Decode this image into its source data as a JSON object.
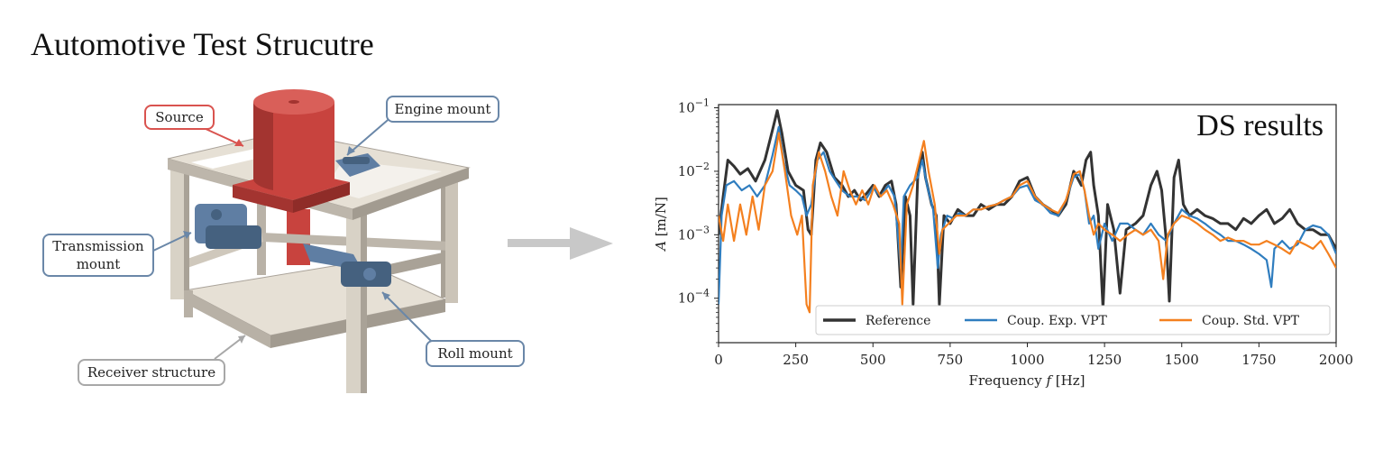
{
  "title": "Automotive Test Strucutre",
  "rig": {
    "labels": {
      "source": "Source",
      "engine_mount": "Engine mount",
      "transmission_mount_line1": "Transmission",
      "transmission_mount_line2": "mount",
      "roll_mount": "Roll mount",
      "receiver_structure": "Receiver structure"
    },
    "colors": {
      "source": "#c8433e",
      "mount": "#5f7ea3",
      "frame": "#e3ddd2",
      "frame_shade": "#9c968c",
      "arrow": "#c8c8c8"
    }
  },
  "chart_data": {
    "type": "line",
    "title": "DS results",
    "xlabel": "Frequency f [Hz]",
    "xlabel_parts": {
      "prefix": "Frequency ",
      "var": "f",
      "suffix": " [Hz]"
    },
    "ylabel": "A [m/N]",
    "ylabel_parts": {
      "var": "A",
      "suffix": " [m/N]"
    },
    "xlim": [
      0,
      2000
    ],
    "ylim_log10": [
      -4.7,
      -0.95
    ],
    "yscale": "log",
    "xticks": [
      0,
      250,
      500,
      750,
      1000,
      1250,
      1500,
      1750,
      2000
    ],
    "yticks": [
      {
        "base": "10",
        "exp": "−1",
        "value": 0.1
      },
      {
        "base": "10",
        "exp": "−2",
        "value": 0.01
      },
      {
        "base": "10",
        "exp": "−3",
        "value": 0.001
      },
      {
        "base": "10",
        "exp": "−4",
        "value": 0.0001
      }
    ],
    "legend_position": "bottom-right",
    "series": [
      {
        "name": "Reference",
        "color": "#333333",
        "points": [
          [
            0,
            0.001
          ],
          [
            15,
            0.004
          ],
          [
            30,
            0.015
          ],
          [
            50,
            0.012
          ],
          [
            70,
            0.009
          ],
          [
            95,
            0.011
          ],
          [
            120,
            0.007
          ],
          [
            150,
            0.015
          ],
          [
            175,
            0.045
          ],
          [
            190,
            0.09
          ],
          [
            205,
            0.04
          ],
          [
            225,
            0.01
          ],
          [
            250,
            0.006
          ],
          [
            275,
            0.005
          ],
          [
            290,
            0.0012
          ],
          [
            300,
            0.001
          ],
          [
            315,
            0.015
          ],
          [
            330,
            0.028
          ],
          [
            350,
            0.02
          ],
          [
            375,
            0.008
          ],
          [
            400,
            0.006
          ],
          [
            420,
            0.004
          ],
          [
            440,
            0.005
          ],
          [
            460,
            0.0035
          ],
          [
            480,
            0.0045
          ],
          [
            500,
            0.006
          ],
          [
            520,
            0.004
          ],
          [
            540,
            0.006
          ],
          [
            560,
            0.007
          ],
          [
            575,
            0.003
          ],
          [
            590,
            0.00015
          ],
          [
            605,
            0.004
          ],
          [
            620,
            0.002
          ],
          [
            630,
            8e-05
          ],
          [
            645,
            0.008
          ],
          [
            660,
            0.02
          ],
          [
            670,
            0.008
          ],
          [
            690,
            0.003
          ],
          [
            705,
            0.002
          ],
          [
            715,
            8e-05
          ],
          [
            730,
            0.002
          ],
          [
            750,
            0.0015
          ],
          [
            775,
            0.0025
          ],
          [
            800,
            0.002
          ],
          [
            825,
            0.002
          ],
          [
            850,
            0.003
          ],
          [
            875,
            0.0025
          ],
          [
            900,
            0.003
          ],
          [
            925,
            0.003
          ],
          [
            950,
            0.004
          ],
          [
            975,
            0.007
          ],
          [
            1000,
            0.008
          ],
          [
            1025,
            0.004
          ],
          [
            1050,
            0.003
          ],
          [
            1075,
            0.0025
          ],
          [
            1100,
            0.002
          ],
          [
            1125,
            0.003
          ],
          [
            1150,
            0.01
          ],
          [
            1175,
            0.006
          ],
          [
            1190,
            0.015
          ],
          [
            1205,
            0.02
          ],
          [
            1215,
            0.006
          ],
          [
            1230,
            0.002
          ],
          [
            1245,
            7e-05
          ],
          [
            1260,
            0.003
          ],
          [
            1280,
            0.0012
          ],
          [
            1300,
            0.00012
          ],
          [
            1320,
            0.0012
          ],
          [
            1350,
            0.0015
          ],
          [
            1375,
            0.002
          ],
          [
            1400,
            0.006
          ],
          [
            1420,
            0.01
          ],
          [
            1435,
            0.005
          ],
          [
            1450,
            0.0008
          ],
          [
            1460,
            9e-05
          ],
          [
            1475,
            0.008
          ],
          [
            1490,
            0.015
          ],
          [
            1505,
            0.003
          ],
          [
            1525,
            0.002
          ],
          [
            1550,
            0.0025
          ],
          [
            1575,
            0.002
          ],
          [
            1600,
            0.0018
          ],
          [
            1625,
            0.0015
          ],
          [
            1650,
            0.0015
          ],
          [
            1675,
            0.0012
          ],
          [
            1700,
            0.0018
          ],
          [
            1725,
            0.0015
          ],
          [
            1750,
            0.002
          ],
          [
            1775,
            0.0025
          ],
          [
            1800,
            0.0015
          ],
          [
            1825,
            0.0018
          ],
          [
            1850,
            0.0025
          ],
          [
            1875,
            0.0015
          ],
          [
            1900,
            0.0012
          ],
          [
            1925,
            0.0012
          ],
          [
            1950,
            0.001
          ],
          [
            1975,
            0.001
          ],
          [
            2000,
            0.0006
          ]
        ]
      },
      {
        "name": "Coup. Exp. VPT",
        "color": "#2f7dbf",
        "points": [
          [
            0,
            8e-05
          ],
          [
            10,
            0.002
          ],
          [
            25,
            0.006
          ],
          [
            50,
            0.007
          ],
          [
            75,
            0.005
          ],
          [
            100,
            0.006
          ],
          [
            125,
            0.004
          ],
          [
            150,
            0.006
          ],
          [
            175,
            0.018
          ],
          [
            195,
            0.05
          ],
          [
            210,
            0.015
          ],
          [
            230,
            0.006
          ],
          [
            250,
            0.005
          ],
          [
            270,
            0.004
          ],
          [
            285,
            0.002
          ],
          [
            300,
            0.003
          ],
          [
            320,
            0.015
          ],
          [
            340,
            0.02
          ],
          [
            360,
            0.01
          ],
          [
            380,
            0.007
          ],
          [
            400,
            0.005
          ],
          [
            425,
            0.004
          ],
          [
            450,
            0.004
          ],
          [
            475,
            0.0035
          ],
          [
            500,
            0.0055
          ],
          [
            525,
            0.004
          ],
          [
            550,
            0.006
          ],
          [
            570,
            0.004
          ],
          [
            590,
            0.0003
          ],
          [
            600,
            0.004
          ],
          [
            620,
            0.006
          ],
          [
            645,
            0.008
          ],
          [
            660,
            0.015
          ],
          [
            675,
            0.006
          ],
          [
            695,
            0.0025
          ],
          [
            710,
            0.0003
          ],
          [
            720,
            0.001
          ],
          [
            740,
            0.002
          ],
          [
            760,
            0.0018
          ],
          [
            780,
            0.0022
          ],
          [
            800,
            0.002
          ],
          [
            825,
            0.0025
          ],
          [
            850,
            0.0025
          ],
          [
            875,
            0.0028
          ],
          [
            900,
            0.003
          ],
          [
            925,
            0.0035
          ],
          [
            950,
            0.004
          ],
          [
            975,
            0.0055
          ],
          [
            1000,
            0.006
          ],
          [
            1025,
            0.0035
          ],
          [
            1050,
            0.003
          ],
          [
            1075,
            0.0022
          ],
          [
            1100,
            0.002
          ],
          [
            1125,
            0.0035
          ],
          [
            1150,
            0.008
          ],
          [
            1170,
            0.009
          ],
          [
            1185,
            0.005
          ],
          [
            1200,
            0.0015
          ],
          [
            1215,
            0.002
          ],
          [
            1230,
            0.0006
          ],
          [
            1250,
            0.0015
          ],
          [
            1275,
            0.0008
          ],
          [
            1300,
            0.0015
          ],
          [
            1325,
            0.0015
          ],
          [
            1350,
            0.0012
          ],
          [
            1375,
            0.001
          ],
          [
            1400,
            0.0015
          ],
          [
            1425,
            0.001
          ],
          [
            1450,
            0.0008
          ],
          [
            1475,
            0.0015
          ],
          [
            1500,
            0.0025
          ],
          [
            1525,
            0.002
          ],
          [
            1550,
            0.0018
          ],
          [
            1575,
            0.0015
          ],
          [
            1600,
            0.0012
          ],
          [
            1625,
            0.001
          ],
          [
            1650,
            0.0008
          ],
          [
            1675,
            0.0008
          ],
          [
            1700,
            0.0007
          ],
          [
            1725,
            0.0006
          ],
          [
            1750,
            0.0005
          ],
          [
            1775,
            0.0004
          ],
          [
            1790,
            0.00015
          ],
          [
            1800,
            0.0006
          ],
          [
            1825,
            0.0008
          ],
          [
            1850,
            0.0006
          ],
          [
            1875,
            0.0007
          ],
          [
            1900,
            0.0012
          ],
          [
            1925,
            0.0014
          ],
          [
            1950,
            0.0013
          ],
          [
            1975,
            0.001
          ],
          [
            2000,
            0.0005
          ]
        ]
      },
      {
        "name": "Coup. Std. VPT",
        "color": "#f4801f",
        "points": [
          [
            0,
            0.002
          ],
          [
            15,
            0.0008
          ],
          [
            30,
            0.003
          ],
          [
            50,
            0.0008
          ],
          [
            70,
            0.003
          ],
          [
            90,
            0.001
          ],
          [
            110,
            0.004
          ],
          [
            130,
            0.0012
          ],
          [
            150,
            0.006
          ],
          [
            175,
            0.01
          ],
          [
            195,
            0.04
          ],
          [
            215,
            0.01
          ],
          [
            235,
            0.002
          ],
          [
            255,
            0.001
          ],
          [
            270,
            0.002
          ],
          [
            285,
            8e-05
          ],
          [
            295,
            6e-05
          ],
          [
            305,
            0.006
          ],
          [
            325,
            0.02
          ],
          [
            345,
            0.01
          ],
          [
            365,
            0.004
          ],
          [
            385,
            0.002
          ],
          [
            405,
            0.01
          ],
          [
            425,
            0.005
          ],
          [
            445,
            0.003
          ],
          [
            465,
            0.005
          ],
          [
            485,
            0.003
          ],
          [
            505,
            0.006
          ],
          [
            525,
            0.004
          ],
          [
            545,
            0.005
          ],
          [
            565,
            0.003
          ],
          [
            585,
            0.0015
          ],
          [
            595,
            8e-05
          ],
          [
            610,
            0.003
          ],
          [
            630,
            0.006
          ],
          [
            650,
            0.015
          ],
          [
            665,
            0.03
          ],
          [
            680,
            0.01
          ],
          [
            700,
            0.003
          ],
          [
            715,
            0.0005
          ],
          [
            725,
            0.0012
          ],
          [
            745,
            0.0015
          ],
          [
            770,
            0.002
          ],
          [
            800,
            0.002
          ],
          [
            825,
            0.0025
          ],
          [
            850,
            0.0025
          ],
          [
            875,
            0.0028
          ],
          [
            900,
            0.003
          ],
          [
            925,
            0.0035
          ],
          [
            950,
            0.004
          ],
          [
            975,
            0.006
          ],
          [
            1000,
            0.007
          ],
          [
            1025,
            0.004
          ],
          [
            1050,
            0.003
          ],
          [
            1075,
            0.0025
          ],
          [
            1100,
            0.0022
          ],
          [
            1125,
            0.0035
          ],
          [
            1150,
            0.009
          ],
          [
            1170,
            0.01
          ],
          [
            1185,
            0.005
          ],
          [
            1200,
            0.002
          ],
          [
            1215,
            0.001
          ],
          [
            1230,
            0.0015
          ],
          [
            1250,
            0.0012
          ],
          [
            1275,
            0.001
          ],
          [
            1300,
            0.0008
          ],
          [
            1325,
            0.001
          ],
          [
            1350,
            0.0012
          ],
          [
            1375,
            0.001
          ],
          [
            1400,
            0.0012
          ],
          [
            1425,
            0.0008
          ],
          [
            1440,
            0.0002
          ],
          [
            1455,
            0.001
          ],
          [
            1475,
            0.0015
          ],
          [
            1500,
            0.002
          ],
          [
            1525,
            0.0018
          ],
          [
            1550,
            0.0015
          ],
          [
            1575,
            0.0012
          ],
          [
            1600,
            0.001
          ],
          [
            1625,
            0.0008
          ],
          [
            1650,
            0.0009
          ],
          [
            1675,
            0.0008
          ],
          [
            1700,
            0.0008
          ],
          [
            1725,
            0.0007
          ],
          [
            1750,
            0.0007
          ],
          [
            1775,
            0.0008
          ],
          [
            1800,
            0.0007
          ],
          [
            1825,
            0.0006
          ],
          [
            1850,
            0.0005
          ],
          [
            1875,
            0.0008
          ],
          [
            1900,
            0.0007
          ],
          [
            1925,
            0.0006
          ],
          [
            1950,
            0.0008
          ],
          [
            1975,
            0.0005
          ],
          [
            2000,
            0.0003
          ]
        ]
      }
    ]
  }
}
